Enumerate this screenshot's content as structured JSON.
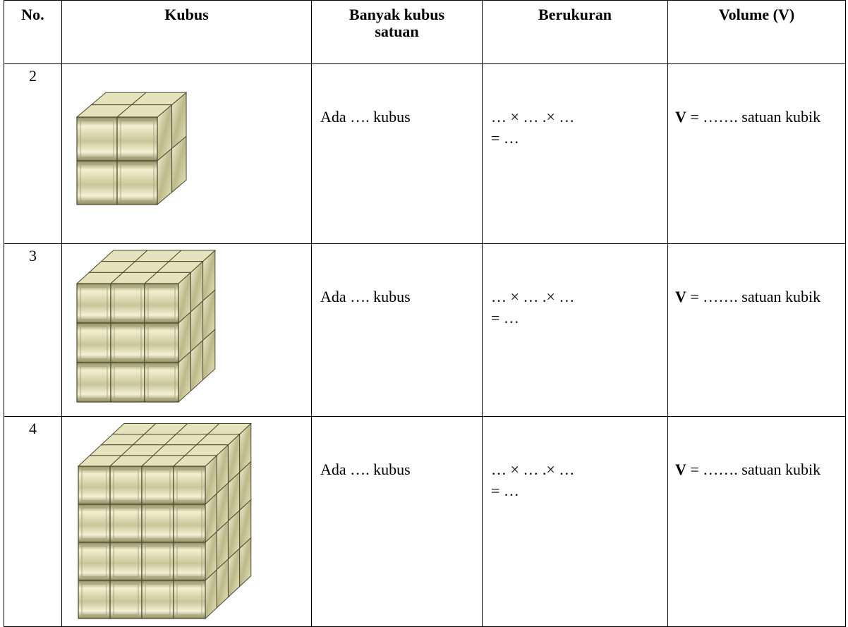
{
  "table": {
    "header": [
      "No.",
      "Kubus",
      "Banyak kubus satuan",
      "Berukuran",
      "Volume (V)"
    ],
    "rows": [
      {
        "no": "2",
        "count": "Ada …. kubus",
        "size_line1": "… × … .× …",
        "size_line2": "= …",
        "volume_symbol": "V",
        "volume_text": "= ……. satuan kubik"
      },
      {
        "no": "3",
        "count": "Ada …. kubus",
        "size_line1": "… × … .× …",
        "size_line2": "= …",
        "volume_symbol": "V",
        "volume_text": "= ……. satuan kubik"
      },
      {
        "no": "4",
        "count": "Ada …. kubus",
        "size_line1": "… × … .× …",
        "size_line2": "= …",
        "volume_symbol": "V",
        "volume_text": "= ……. satuan kubik"
      }
    ]
  }
}
